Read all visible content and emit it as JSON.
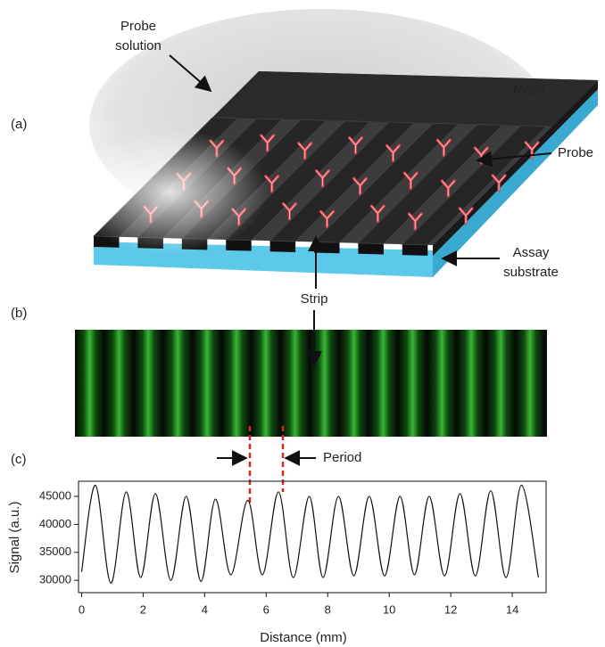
{
  "panel_labels": [
    "(a)",
    "(b)",
    "(c)"
  ],
  "diagram": {
    "probe_solution": [
      "Probe",
      "solution"
    ],
    "mask": "Mask",
    "probe": "Probe",
    "assay_substrate": [
      "Assay",
      "substrate"
    ],
    "strip": "Strip",
    "period": "Period"
  },
  "chart_data": {
    "type": "line",
    "xlabel": "Distance (mm)",
    "ylabel": "Signal (a.u.)",
    "color": "#111111",
    "x": [
      0,
      0.45,
      0.95,
      1.45,
      1.92,
      2.4,
      2.9,
      3.4,
      3.88,
      4.35,
      4.85,
      5.4,
      5.88,
      6.4,
      6.88,
      7.4,
      7.85,
      8.35,
      8.85,
      9.35,
      9.85,
      10.35,
      10.82,
      11.3,
      11.8,
      12.3,
      12.8,
      13.3,
      13.8,
      14.3,
      14.85
    ],
    "values": [
      31500,
      47000,
      29500,
      45800,
      30500,
      45500,
      30000,
      45000,
      29800,
      44500,
      31000,
      44300,
      31000,
      45800,
      30500,
      45000,
      30500,
      45000,
      30800,
      45000,
      30800,
      45000,
      31000,
      45000,
      30800,
      45500,
      30800,
      46000,
      30500,
      47000,
      30500
    ],
    "xlim": [
      -0.1,
      15.1
    ],
    "ylim": [
      27800,
      47700
    ],
    "xticks": [
      0,
      2,
      4,
      6,
      8,
      10,
      12,
      14
    ],
    "yticks": [
      30000,
      35000,
      40000,
      45000
    ]
  }
}
